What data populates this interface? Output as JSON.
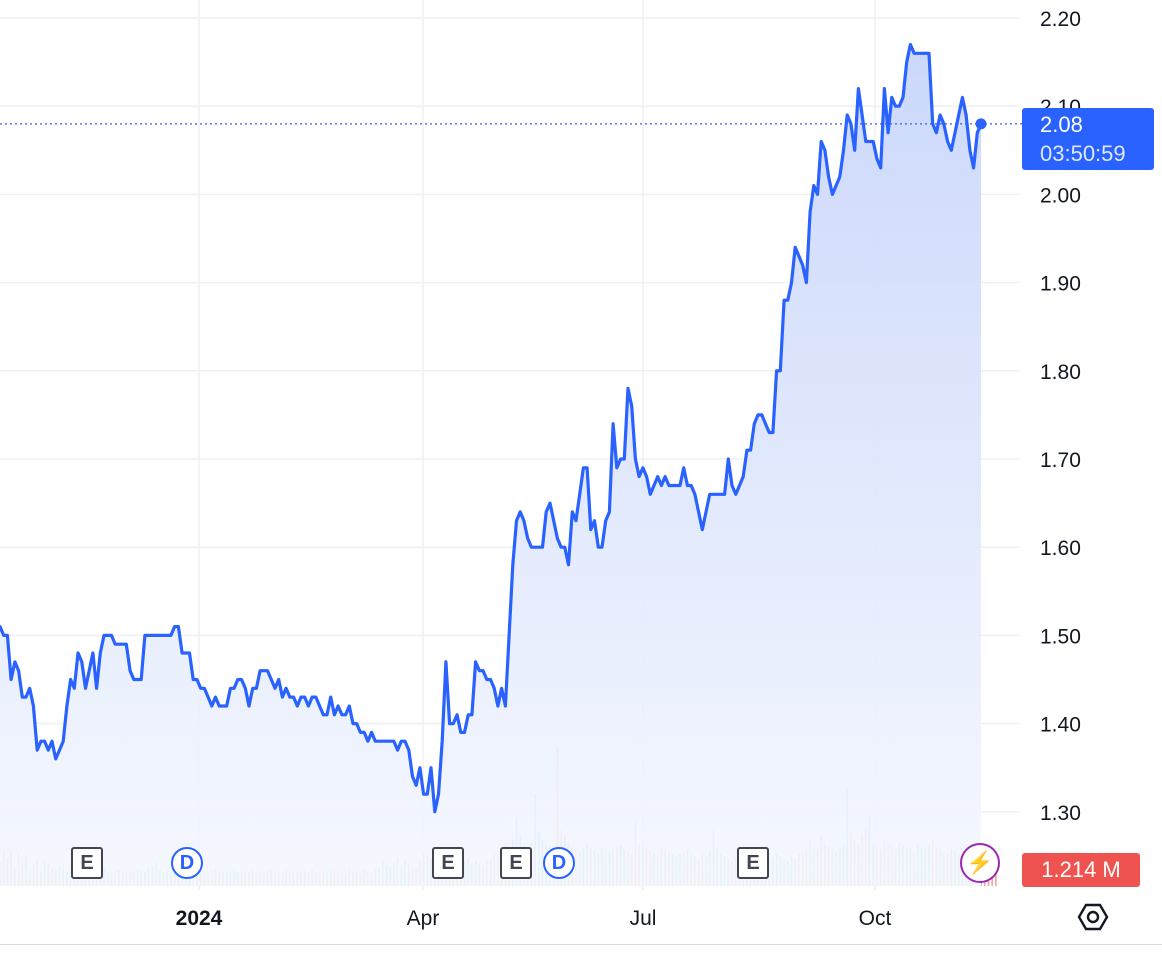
{
  "chart_data": {
    "type": "area",
    "y_ticks": [
      "2.20",
      "2.10",
      "2.00",
      "1.90",
      "1.80",
      "1.70",
      "1.60",
      "1.50",
      "1.40",
      "1.30"
    ],
    "x_ticks": [
      {
        "label": "2024",
        "bold": true
      },
      {
        "label": "Apr",
        "bold": false
      },
      {
        "label": "Jul",
        "bold": false
      },
      {
        "label": "Oct",
        "bold": false
      }
    ],
    "ylim": [
      1.26,
      2.2
    ],
    "grid": true,
    "series": [
      {
        "values": [
          1.51,
          1.5,
          1.5,
          1.45,
          1.47,
          1.46,
          1.43,
          1.43,
          1.44,
          1.42,
          1.37,
          1.38,
          1.38,
          1.37,
          1.38,
          1.36,
          1.37,
          1.38,
          1.42,
          1.45,
          1.44,
          1.48,
          1.47,
          1.44,
          1.46,
          1.48,
          1.44,
          1.48,
          1.5,
          1.5,
          1.5,
          1.49,
          1.49,
          1.49,
          1.49,
          1.46,
          1.45,
          1.45,
          1.45,
          1.5,
          1.5,
          1.5,
          1.5,
          1.5,
          1.5,
          1.5,
          1.5,
          1.51,
          1.51,
          1.48,
          1.48,
          1.48,
          1.45,
          1.45,
          1.44,
          1.44,
          1.43,
          1.42,
          1.43,
          1.42,
          1.42,
          1.42,
          1.44,
          1.44,
          1.45,
          1.45,
          1.44,
          1.42,
          1.44,
          1.44,
          1.46,
          1.46,
          1.46,
          1.45,
          1.44,
          1.45,
          1.43,
          1.44,
          1.43,
          1.43,
          1.42,
          1.43,
          1.43,
          1.42,
          1.43,
          1.43,
          1.42,
          1.41,
          1.41,
          1.43,
          1.41,
          1.42,
          1.41,
          1.41,
          1.42,
          1.4,
          1.4,
          1.39,
          1.39,
          1.38,
          1.39,
          1.38,
          1.38,
          1.38,
          1.38,
          1.38,
          1.38,
          1.37,
          1.38,
          1.38,
          1.37,
          1.34,
          1.33,
          1.35,
          1.32,
          1.32,
          1.35,
          1.3,
          1.32,
          1.38,
          1.47,
          1.4,
          1.4,
          1.41,
          1.39,
          1.39,
          1.41,
          1.41,
          1.47,
          1.46,
          1.46,
          1.45,
          1.45,
          1.44,
          1.42,
          1.44,
          1.42,
          1.5,
          1.58,
          1.63,
          1.64,
          1.63,
          1.61,
          1.6,
          1.6,
          1.6,
          1.6,
          1.64,
          1.65,
          1.63,
          1.61,
          1.6,
          1.6,
          1.58,
          1.64,
          1.63,
          1.66,
          1.69,
          1.69,
          1.62,
          1.63,
          1.6,
          1.6,
          1.63,
          1.64,
          1.74,
          1.69,
          1.7,
          1.7,
          1.78,
          1.76,
          1.7,
          1.68,
          1.69,
          1.68,
          1.66,
          1.67,
          1.68,
          1.67,
          1.68,
          1.67,
          1.67,
          1.67,
          1.67,
          1.69,
          1.67,
          1.67,
          1.66,
          1.64,
          1.62,
          1.64,
          1.66,
          1.66,
          1.66,
          1.66,
          1.66,
          1.7,
          1.67,
          1.66,
          1.67,
          1.68,
          1.71,
          1.71,
          1.74,
          1.75,
          1.75,
          1.74,
          1.73,
          1.73,
          1.8,
          1.8,
          1.88,
          1.88,
          1.9,
          1.94,
          1.93,
          1.92,
          1.9,
          1.98,
          2.01,
          2.0,
          2.06,
          2.05,
          2.02,
          2.0,
          2.01,
          2.02,
          2.05,
          2.09,
          2.08,
          2.05,
          2.12,
          2.09,
          2.06,
          2.06,
          2.06,
          2.04,
          2.03,
          2.12,
          2.07,
          2.11,
          2.1,
          2.1,
          2.11,
          2.15,
          2.17,
          2.16,
          2.16,
          2.16,
          2.16,
          2.16,
          2.08,
          2.07,
          2.09,
          2.08,
          2.06,
          2.05,
          2.07,
          2.09,
          2.11,
          2.09,
          2.05,
          2.03,
          2.07,
          2.08
        ]
      }
    ],
    "volume": [
      0.55,
      0.8,
      0.6,
      0.75,
      0.4,
      0.7,
      0.5,
      0.65,
      0.35,
      0.45,
      0.6,
      0.3,
      0.55,
      0.5,
      0.4,
      0.35,
      0.45,
      0.5,
      0.3,
      0.35,
      0.4,
      0.45,
      0.38,
      0.3,
      0.42,
      0.36,
      0.3,
      0.34,
      0.4,
      0.28,
      0.3,
      0.32,
      0.35,
      0.3,
      0.28,
      0.33,
      0.3,
      0.35,
      0.32,
      0.3,
      0.4,
      0.45,
      0.5,
      0.35,
      0.3,
      0.32,
      0.3,
      0.28,
      0.35,
      0.3,
      0.32,
      0.3,
      0.35,
      0.28,
      0.3,
      0.32,
      0.3,
      0.35,
      0.38,
      0.3,
      0.28,
      0.32,
      0.3,
      0.35,
      0.3,
      0.28,
      0.32,
      0.3,
      0.35,
      0.3,
      0.28,
      0.3,
      0.32,
      0.35,
      0.3,
      0.28,
      0.3,
      0.35,
      0.32,
      0.3,
      0.28,
      0.3,
      0.32,
      0.3,
      0.35,
      0.3,
      0.28,
      0.3,
      0.32,
      0.35,
      0.3,
      0.33,
      0.3,
      0.28,
      0.35,
      0.32,
      0.3,
      0.28,
      0.36,
      0.32,
      0.3,
      0.35,
      0.4,
      0.55,
      0.45,
      0.4,
      0.5,
      0.6,
      0.45,
      0.55,
      0.5,
      0.45,
      0.4,
      0.55,
      0.7,
      0.65,
      0.6,
      0.55,
      0.5,
      0.45,
      0.6,
      0.75,
      0.8,
      0.7,
      0.65,
      0.55,
      0.6,
      0.5,
      0.55,
      0.5,
      0.45,
      0.55,
      0.6,
      0.7,
      0.65,
      0.8,
      0.9,
      0.85,
      1.0,
      1.5,
      1.1,
      0.9,
      0.85,
      0.95,
      2.0,
      1.2,
      1.0,
      0.9,
      0.85,
      0.8,
      3.0,
      1.2,
      1.1,
      0.9,
      0.85,
      0.8,
      0.75,
      0.85,
      0.9,
      0.8,
      0.75,
      0.7,
      0.85,
      0.8,
      0.75,
      0.8,
      0.85,
      0.9,
      0.8,
      0.75,
      0.7,
      1.4,
      0.9,
      0.85,
      0.8,
      0.75,
      0.7,
      0.65,
      0.85,
      0.8,
      0.75,
      0.7,
      0.65,
      0.7,
      0.75,
      0.8,
      0.7,
      0.65,
      0.6,
      0.7,
      0.65,
      0.75,
      1.2,
      0.8,
      0.7,
      0.65,
      0.6,
      0.55,
      0.65,
      0.6,
      0.7,
      0.75,
      0.65,
      0.6,
      0.55,
      0.65,
      0.6,
      0.55,
      0.6,
      0.7,
      0.65,
      0.6,
      0.55,
      0.65,
      0.6,
      0.7,
      0.75,
      0.8,
      1.0,
      0.85,
      0.8,
      1.1,
      0.9,
      0.85,
      0.8,
      0.75,
      0.85,
      0.9,
      2.1,
      1.2,
      1.0,
      0.9,
      1.1,
      1.3,
      1.5,
      0.9,
      0.85,
      0.8,
      1.0,
      0.9,
      0.85,
      0.8,
      0.95,
      0.9,
      0.85,
      0.8,
      0.75,
      0.9,
      0.85,
      0.8,
      0.9,
      1.0,
      0.85,
      0.8,
      0.75,
      0.7,
      0.8,
      0.75,
      0.7,
      0.65,
      0.6,
      0.7,
      0.65,
      0.6,
      0.55,
      0.65,
      0.6,
      0.55,
      0.5
    ],
    "current": {
      "value": 2.08,
      "label": "2.08",
      "countdown": "03:50:59"
    },
    "volume_label": "1.214 M",
    "events": [
      {
        "label": "E",
        "kind": "earnings"
      },
      {
        "label": "D",
        "kind": "dividend"
      },
      {
        "label": "E",
        "kind": "earnings"
      },
      {
        "label": "E",
        "kind": "earnings"
      },
      {
        "label": "D",
        "kind": "dividend"
      },
      {
        "label": "E",
        "kind": "earnings"
      },
      {
        "label": "⚡",
        "kind": "news"
      }
    ],
    "colors": {
      "line": "#2962ff",
      "area_top": "#c9d6fb",
      "area_bottom": "#f4f7fe",
      "grid": "#f0f0f3",
      "volume_up": "#7fc7bb",
      "volume_down": "#f0a0a0",
      "badge_price": "#2962ff",
      "badge_volume": "#ef5350"
    }
  }
}
